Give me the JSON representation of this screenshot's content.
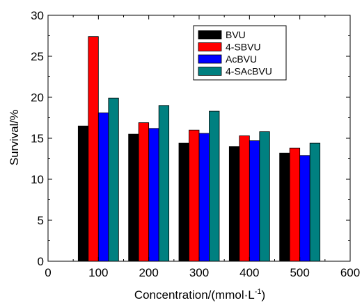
{
  "chart_data": {
    "type": "bar",
    "title": "",
    "xlabel": "Concentration/(mmol·L",
    "xlabel_superscript": "-1",
    "xlabel_close": ")",
    "ylabel": "Survival/%",
    "xlim": [
      0,
      600
    ],
    "ylim": [
      0,
      30
    ],
    "x_ticks": [
      0,
      100,
      200,
      300,
      400,
      500,
      600
    ],
    "y_ticks": [
      0,
      5,
      10,
      15,
      20,
      25,
      30
    ],
    "grid": false,
    "legend_position": "top-right",
    "x": [
      100,
      200,
      300,
      400,
      500
    ],
    "series": [
      {
        "name": "BVU",
        "color": "#000000",
        "values": [
          16.5,
          15.5,
          14.4,
          14.0,
          13.2
        ]
      },
      {
        "name": "4-SBVU",
        "color": "#ff0000",
        "values": [
          27.4,
          16.9,
          16.0,
          15.3,
          13.8
        ]
      },
      {
        "name": "AcBVU",
        "color": "#0000ff",
        "values": [
          18.1,
          16.2,
          15.6,
          14.7,
          12.9
        ]
      },
      {
        "name": "4-SAcBVU",
        "color": "#008080",
        "values": [
          19.9,
          19.0,
          18.3,
          15.8,
          14.4
        ]
      }
    ]
  }
}
